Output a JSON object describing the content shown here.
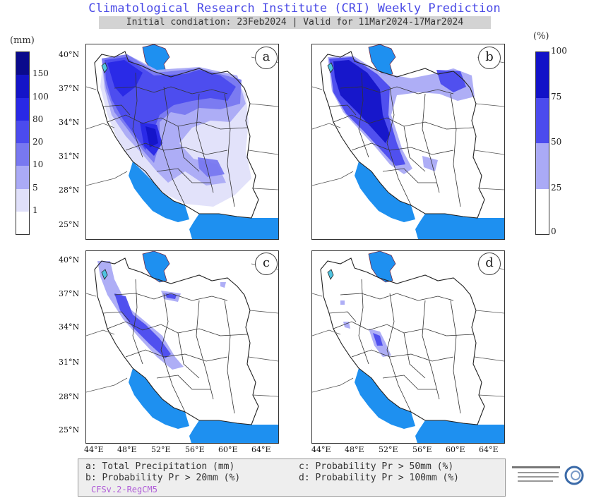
{
  "header": {
    "title": "Climatological Research Institute (CRI) Weekly Prediction",
    "subtitle": "Initial condiation: 23Feb2024 | Valid for 11Mar2024-17Mar2024"
  },
  "left_colorbar": {
    "unit": "(mm)",
    "labels": [
      "150",
      "100",
      "80",
      "20",
      "10",
      "5",
      "1"
    ],
    "colors": [
      "#0a0a8c",
      "#1414c8",
      "#2828e6",
      "#4b4bee",
      "#7878f0",
      "#aaaaf6",
      "#e0e0fa",
      "#ffffff"
    ]
  },
  "right_colorbar": {
    "unit": "(%)",
    "labels": [
      "100",
      "75",
      "50",
      "25",
      "0"
    ],
    "colors": [
      "#1212c8",
      "#4b4bee",
      "#aaaaf6",
      "#ffffff"
    ]
  },
  "panels": [
    {
      "id": "a",
      "label": "a"
    },
    {
      "id": "b",
      "label": "b"
    },
    {
      "id": "c",
      "label": "c"
    },
    {
      "id": "d",
      "label": "d"
    }
  ],
  "axes": {
    "lat_labels": [
      "40°N",
      "37°N",
      "34°N",
      "31°N",
      "28°N",
      "25°N"
    ],
    "lon_labels": [
      "44°E",
      "48°E",
      "52°E",
      "56°E",
      "60°E",
      "64°E"
    ]
  },
  "legend": {
    "a": "a: Total Precipitation (mm)",
    "b": "b: Probability Pr > 20mm (%)",
    "c": "c: Probability Pr > 50mm (%)",
    "d": "d: Probability Pr > 100mm (%)",
    "model": "CFSv.2-RegCM5"
  },
  "colors": {
    "water": "#1e90f0",
    "title": "#4a4ae6",
    "border": "#222222"
  }
}
